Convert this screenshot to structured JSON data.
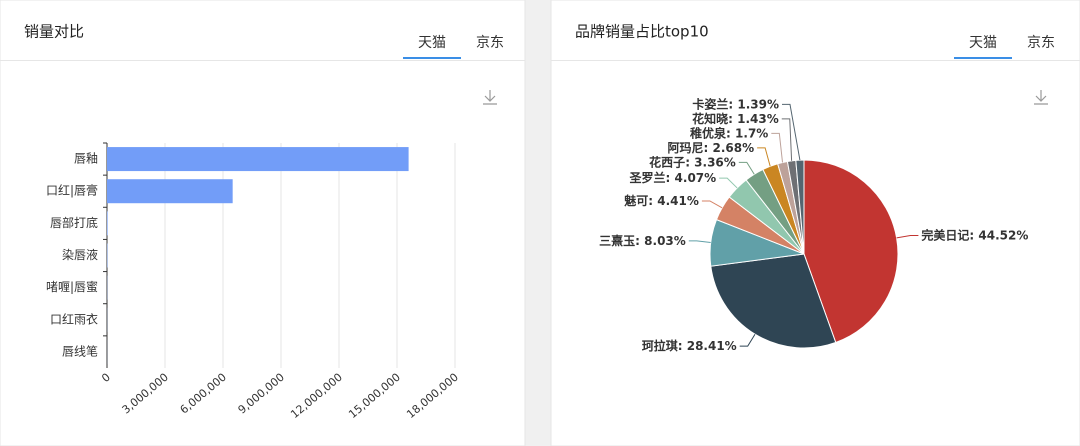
{
  "chart_data": [
    {
      "type": "hbar",
      "title": "销量对比",
      "tabs": [
        "天猫",
        "京东"
      ],
      "active_tab": 0,
      "categories": [
        "唇釉",
        "口红|唇膏",
        "唇部打底",
        "染唇液",
        "啫喱|唇蜜",
        "口红雨衣",
        "唇线笔"
      ],
      "values": [
        15600000,
        6500000,
        30000,
        20000,
        10000,
        5000,
        3000
      ],
      "color": "#729df8",
      "xlim": [
        0,
        18000000
      ],
      "xticks": [
        0,
        {
          "value": 3000000,
          "label": "3,000,000"
        },
        {
          "value": 6000000,
          "label": "6,000,000"
        },
        {
          "value": 9000000,
          "label": "9,000,000"
        },
        {
          "value": 12000000,
          "label": "12,000,000"
        },
        {
          "value": 15000000,
          "label": "15,000,000"
        },
        {
          "value": 18000000,
          "label": "18,000,000"
        }
      ],
      "grid": true
    },
    {
      "type": "pie",
      "title": "品牌销量占比top10",
      "tabs": [
        "天猫",
        "京东"
      ],
      "active_tab": 0,
      "categories": [
        "完美日记",
        "珂拉琪",
        "三熹玉",
        "魅可",
        "圣罗兰",
        "花西子",
        "阿玛尼",
        "稚优泉",
        "花知晓",
        "卡姿兰"
      ],
      "values": [
        44.52,
        28.41,
        8.03,
        4.41,
        4.07,
        3.36,
        2.68,
        1.7,
        1.43,
        1.39
      ],
      "value_labels": [
        "44.52%",
        "28.41%",
        "8.03%",
        "4.41%",
        "4.07%",
        "3.36%",
        "2.68%",
        "1.7%",
        "1.43%",
        "1.39%"
      ],
      "label_separator": ": ",
      "colors": [
        "#c23531",
        "#2f4554",
        "#61a0a8",
        "#d48265",
        "#91c7ae",
        "#749f83",
        "#ca8622",
        "#bda29a",
        "#6e7074",
        "#546570"
      ]
    }
  ]
}
